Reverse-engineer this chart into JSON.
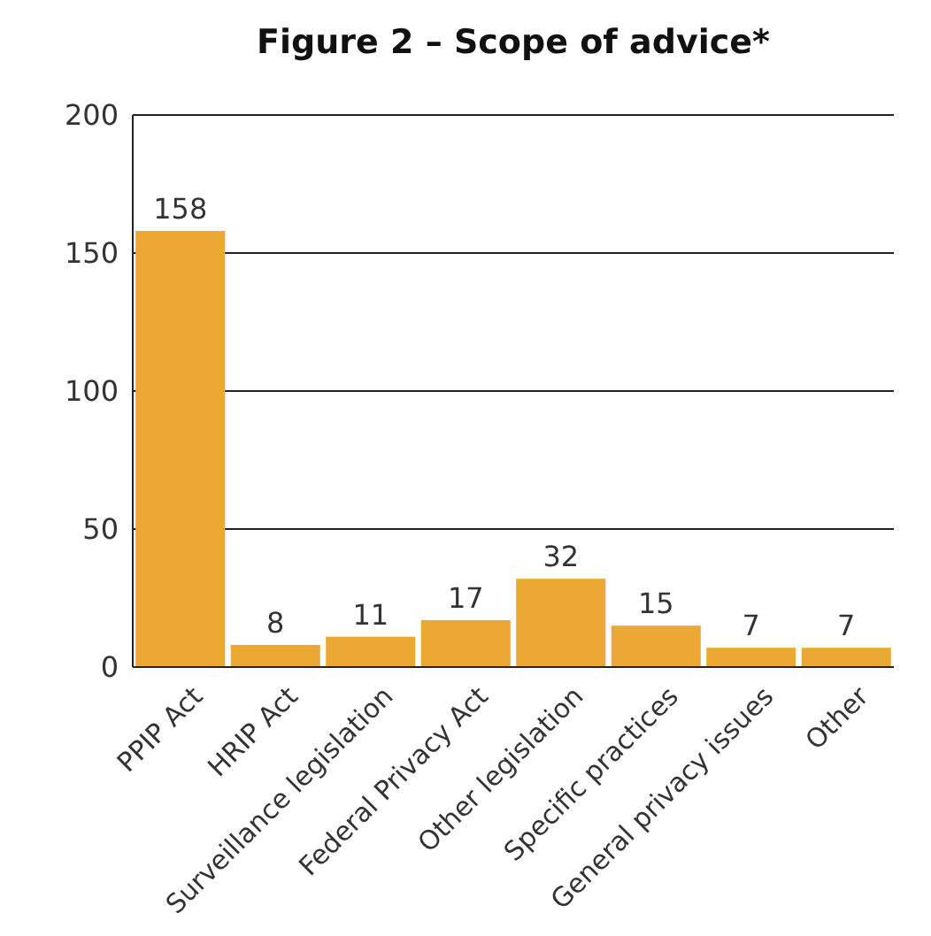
{
  "chart_data": {
    "type": "bar",
    "title": "Figure 2 – Scope of advice*",
    "categories": [
      "PPIP Act",
      "HRIP Act",
      "Surveillance legislation",
      "Federal Privacy Act",
      "Other legislation",
      "Specific practices",
      "General privacy issues",
      "Other"
    ],
    "values": [
      158,
      8,
      11,
      17,
      32,
      15,
      7,
      7
    ],
    "color": "#eba834",
    "ylim": [
      0,
      200
    ],
    "yticks": [
      0,
      50,
      100,
      150,
      200
    ],
    "grid": "y",
    "data_labels": true
  }
}
